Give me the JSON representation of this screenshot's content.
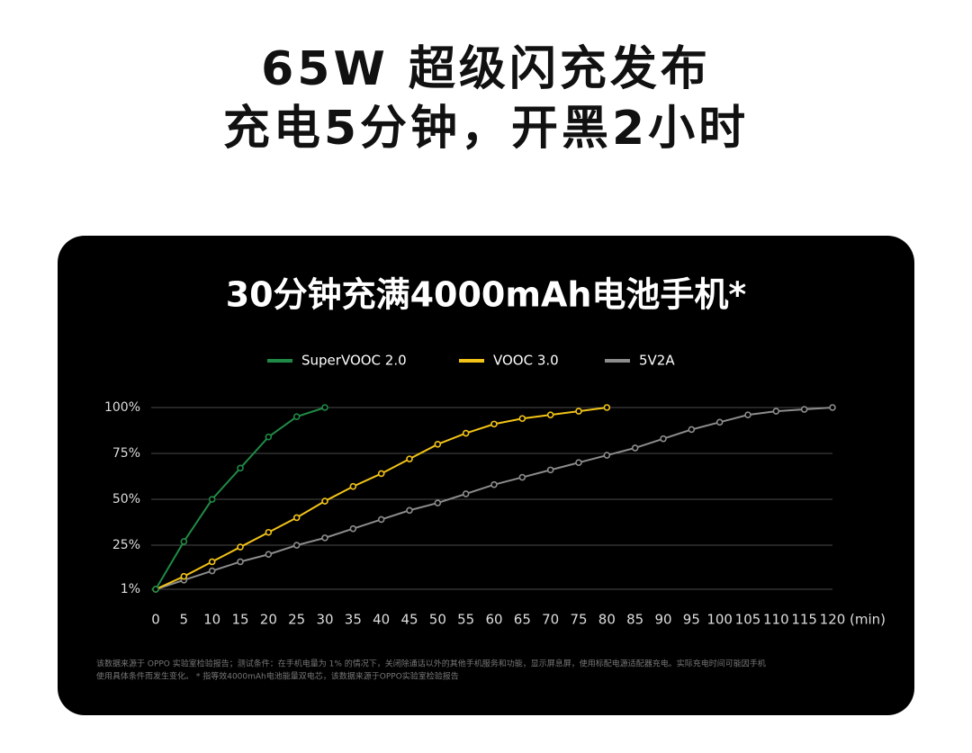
{
  "headline": [
    "65W 超级闪充发布",
    "充电5分钟，开黑2小时"
  ],
  "chart_data": {
    "type": "line",
    "title": "30分钟充满4000mAh电池手机*",
    "x_unit": "(min)",
    "xlim": [
      0,
      120
    ],
    "xticks": [
      0,
      5,
      10,
      15,
      20,
      25,
      30,
      35,
      40,
      45,
      50,
      55,
      60,
      65,
      70,
      75,
      80,
      85,
      90,
      95,
      100,
      105,
      110,
      115,
      120
    ],
    "ylim": [
      1,
      100
    ],
    "yticks": [
      {
        "value": 1,
        "label": "1%"
      },
      {
        "value": 25,
        "label": "25%"
      },
      {
        "value": 50,
        "label": "50%"
      },
      {
        "value": 75,
        "label": "75%"
      },
      {
        "value": 100,
        "label": "100%"
      }
    ],
    "grid": true,
    "series": [
      {
        "name": "SuperVOOC 2.0",
        "color": "#1f8a45",
        "x": [
          0,
          5,
          10,
          15,
          20,
          25,
          30
        ],
        "values": [
          1,
          27,
          50,
          67,
          84,
          95,
          100
        ]
      },
      {
        "name": "VOOC 3.0",
        "color": "#f2c318",
        "x": [
          0,
          5,
          10,
          15,
          20,
          25,
          30,
          35,
          40,
          45,
          50,
          55,
          60,
          65,
          70,
          75,
          80
        ],
        "values": [
          1,
          8,
          16,
          24,
          32,
          40,
          49,
          57,
          64,
          72,
          80,
          86,
          91,
          94,
          96,
          98,
          100
        ]
      },
      {
        "name": "5V2A",
        "color": "#8c8c8c",
        "x": [
          0,
          5,
          10,
          15,
          20,
          25,
          30,
          35,
          40,
          45,
          50,
          55,
          60,
          65,
          70,
          75,
          80,
          85,
          90,
          95,
          100,
          105,
          110,
          115,
          120
        ],
        "values": [
          1,
          6,
          11,
          16,
          20,
          25,
          29,
          34,
          39,
          44,
          48,
          53,
          58,
          62,
          66,
          70,
          74,
          78,
          83,
          88,
          92,
          96,
          98,
          99,
          100
        ]
      }
    ],
    "footnotes": [
      "该数据来源于 OPPO 实验室检验报告；测试条件：在手机电量为 1% 的情况下，关闭除通话以外的其他手机服务和功能，显示屏息屏，使用标配电源适配器充电。实际充电时间可能因手机",
      "使用具体条件而发生变化。 * 指等效4000mAh电池能量双电芯，该数据来源于OPPO实验室检验报告"
    ]
  }
}
